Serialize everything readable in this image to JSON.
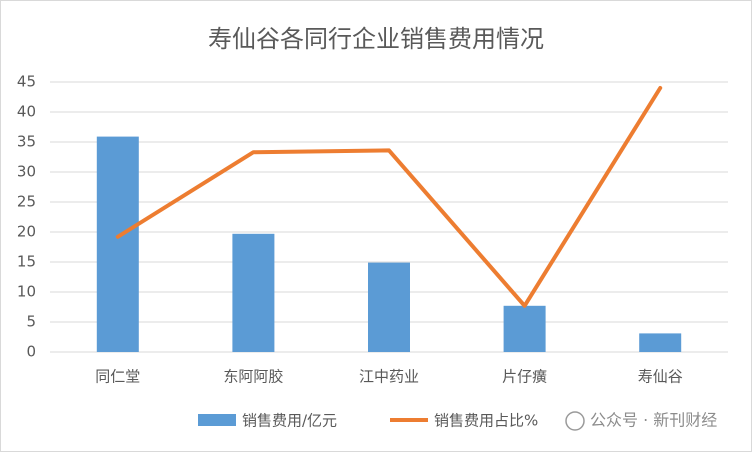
{
  "chart_data": {
    "type": "combo",
    "title": "寿仙谷各同行企业销售费用情况",
    "categories": [
      "同仁堂",
      "东阿阿胶",
      "江中药业",
      "片仔癀",
      "寿仙谷"
    ],
    "series": [
      {
        "name": "销售费用/亿元",
        "type": "bar",
        "color": "#5b9bd5",
        "values": [
          35.9,
          19.7,
          14.9,
          7.7,
          3.1
        ]
      },
      {
        "name": "销售费用占比%",
        "type": "line",
        "color": "#ed7d31",
        "values": [
          19.2,
          33.3,
          33.6,
          7.7,
          44.0
        ]
      }
    ],
    "ylim": [
      0,
      45
    ],
    "yticks": [
      0,
      5,
      10,
      15,
      20,
      25,
      30,
      35,
      40,
      45
    ],
    "grid": true,
    "legend": "bottom",
    "watermark": "公众号 · 新刊财经"
  }
}
